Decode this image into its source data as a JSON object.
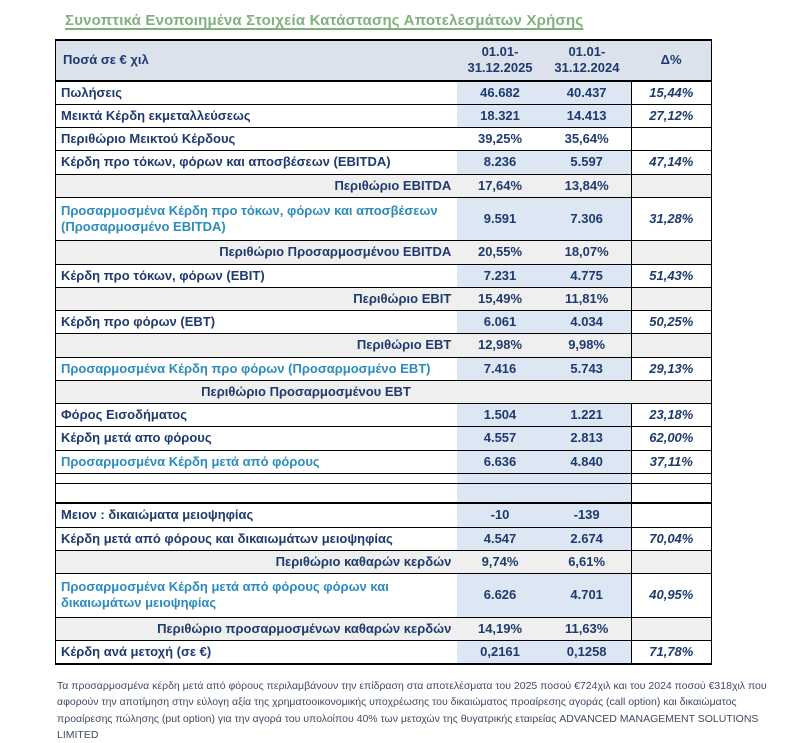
{
  "title": "Συνοπτικά Ενοποιημένα  Στοιχεία Κατάστασης Αποτελεσμάτων Χρήσης",
  "colors": {
    "text_navy": "#1e3a6e",
    "accent_teal": "#2b8cbd",
    "title_green": "#7fb27a",
    "header_bg": "#dbe2ec",
    "value_bg": "#dce7f3",
    "margin_bg": "#efefef",
    "border_black": "#000000",
    "footnote_color": "#3e4a61"
  },
  "table": {
    "header": {
      "label_column": "Ποσά σε € χιλ",
      "period_2025": [
        "01.01-",
        "31.12.2025"
      ],
      "period_2024": [
        "01.01-",
        "31.12.2024"
      ],
      "delta_column": "Δ%"
    },
    "rows": [
      {
        "label": "Πωλήσεις",
        "v2025": "46.682",
        "v2024": "40.437",
        "delta": "15,44%",
        "style": "data"
      },
      {
        "label": "Μεικτά Κέρδη εκμεταλλεύσεως",
        "v2025": "18.321",
        "v2024": "14.413",
        "delta": "27,12%",
        "style": "data"
      },
      {
        "label": "Περιθώριο Μεικτού Κέρδους",
        "v2025": "39,25%",
        "v2024": "35,64%",
        "delta": "",
        "style": "plain"
      },
      {
        "label": "Κέρδη προ τόκων, φόρων και αποσβέσεων (EBITDA)",
        "v2025": "8.236",
        "v2024": "5.597",
        "delta": "47,14%",
        "style": "data"
      },
      {
        "label": "Περιθώριο EBITDA",
        "v2025": "17,64%",
        "v2024": "13,84%",
        "delta": "",
        "style": "margin"
      },
      {
        "label": "Προσαρμοσμένα Κέρδη προ τόκων, φόρων και αποσβέσεων (Προσαρμοσμένο EBITDA)",
        "v2025": "9.591",
        "v2024": "7.306",
        "delta": "31,28%",
        "style": "adjusted"
      },
      {
        "label": "Περιθώριο  Προσαρμοσμένου EBITDA",
        "v2025": "20,55%",
        "v2024": "18,07%",
        "delta": "",
        "style": "margin"
      },
      {
        "label": "Κέρδη προ τόκων, φόρων (EBIT)",
        "v2025": "7.231",
        "v2024": "4.775",
        "delta": "51,43%",
        "style": "data"
      },
      {
        "label": "Περιθώριο EBIT",
        "v2025": "15,49%",
        "v2024": "11,81%",
        "delta": "",
        "style": "margin"
      },
      {
        "label": "Κέρδη προ φόρων (EBT)",
        "v2025": "6.061",
        "v2024": "4.034",
        "delta": "50,25%",
        "style": "data"
      },
      {
        "label": "Περιθώριο EBT",
        "v2025": "12,98%",
        "v2024": "9,98%",
        "delta": "",
        "style": "margin"
      },
      {
        "label": "Προσαρμοσμένα Κέρδη προ φόρων (Προσαρμοσμένο EBT)",
        "v2025": "7.416",
        "v2024": "5.743",
        "delta": "29,13%",
        "style": "adjusted"
      },
      {
        "label": "Περιθώριο  Προσαρμοσμένου EBT",
        "v2025": "",
        "v2024": "",
        "delta": "",
        "style": "marginfull"
      },
      {
        "label": "Φόρος Εισοδήματος",
        "v2025": "1.504",
        "v2024": "1.221",
        "delta": "23,18%",
        "style": "data"
      },
      {
        "label": "Κέρδη μετά απο φόρους",
        "v2025": "4.557",
        "v2024": "2.813",
        "delta": "62,00%",
        "style": "data"
      },
      {
        "label": "Προσαρμοσμένα Κέρδη μετά από φόρους",
        "v2025": "6.636",
        "v2024": "4.840",
        "delta": "37,11%",
        "style": "adjusted"
      },
      {
        "label": "",
        "v2025": "",
        "v2024": "",
        "delta": "",
        "style": "empty"
      },
      {
        "label": "",
        "v2025": "",
        "v2024": "",
        "delta": "",
        "style": "emptythick"
      },
      {
        "label": "Μειον : δικαιώματα μειοψηφίας",
        "v2025": "-10",
        "v2024": "-139",
        "delta": "",
        "style": "data"
      },
      {
        "label": "Κέρδη  μετά από φόρους και δικαιωμάτων μειοψηφίας",
        "v2025": "4.547",
        "v2024": "2.674",
        "delta": "70,04%",
        "style": "data"
      },
      {
        "label": "Περιθώριο καθαρών κερδών",
        "v2025": "9,74%",
        "v2024": "6,61%",
        "delta": "",
        "style": "margin"
      },
      {
        "label": "Προσαρμοσμένα Κέρδη  μετά από φόρους φόρων και δικαιωμάτων μειοψηφίας",
        "v2025": "6.626",
        "v2024": "4.701",
        "delta": "40,95%",
        "style": "adjusted"
      },
      {
        "label": "Περιθώριο προσαρμοσμένων καθαρών κερδών",
        "v2025": "14,19%",
        "v2024": "11,63%",
        "delta": "",
        "style": "margin"
      },
      {
        "label": "Κέρδη ανά μετοχή (σε €)",
        "v2025": "0,2161",
        "v2024": "0,1258",
        "delta": "71,78%",
        "style": "data"
      }
    ]
  },
  "footnote": "Τα προσαρμοσμένα κέρδη μετά από φόρους  περιλαμβάνουν την επίδραση  στα αποτελέσματα του 2025 ποσού  €724χιλ και του 2024 ποσού €318χιλ που αφορούν την αποτίμηση στην εύλογη αξία της  χρηματοοικονομικής υποχρέωσης του δικαιώματος προαίρεσης αγοράς (call option) και δικαιώματος προαίρεσης πώλησης (put option) για την αγορά του υπολοίπου 40% των μετοχών της θυγατρικής εταιρείας ADVANCED MANAGEMENT SOLUTIONS LIMITED"
}
